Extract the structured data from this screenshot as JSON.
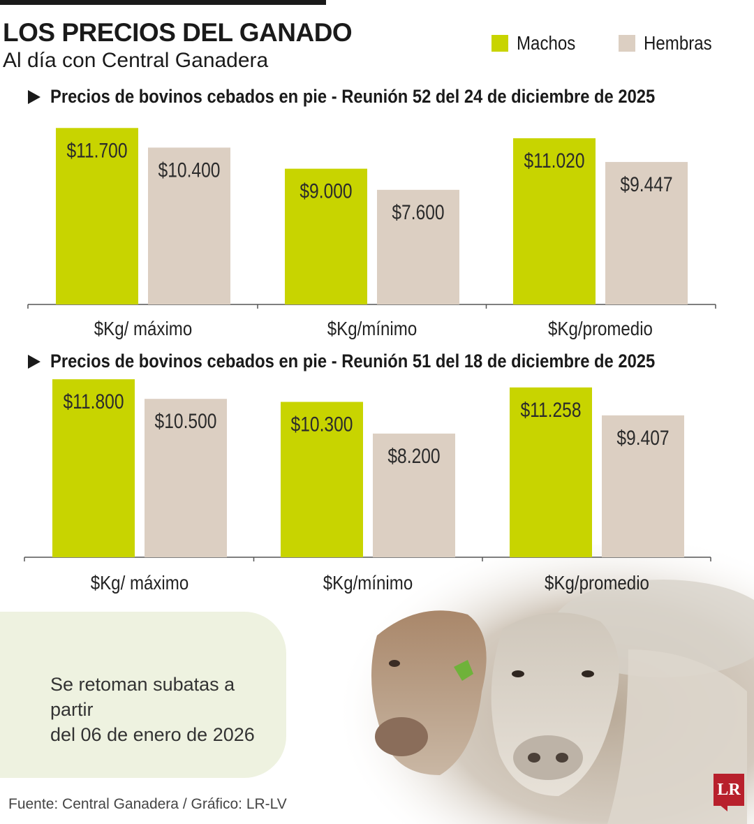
{
  "header": {
    "title": "LOS PRECIOS DEL GANADO",
    "subtitle": "Al día con Central Ganadera"
  },
  "legend": {
    "machos": "Machos",
    "hembras": "Hembras"
  },
  "colors": {
    "machos": "#c8d400",
    "hembras": "#dccfc2",
    "axis": "#555555"
  },
  "chart_data": [
    {
      "type": "bar",
      "title": "Precios de bovinos cebados en pie - Reunión 52 del 24 de diciembre de 2025",
      "categories": [
        "$Kg/ máximo",
        "$Kg/mínimo",
        "$Kg/promedio"
      ],
      "series": [
        {
          "name": "Machos",
          "values": [
            11700,
            9000,
            11020
          ],
          "labels": [
            "$11.700",
            "$9.000",
            "$11.020"
          ]
        },
        {
          "name": "Hembras",
          "values": [
            10400,
            7600,
            9447
          ],
          "labels": [
            "$10.400",
            "$7.600",
            "$9.447"
          ]
        }
      ],
      "ylim": [
        0,
        12500
      ],
      "grid": false
    },
    {
      "type": "bar",
      "title": "Precios de bovinos cebados en pie - Reunión 51 del 18 de diciembre de 2025",
      "categories": [
        "$Kg/ máximo",
        "$Kg/mínimo",
        "$Kg/promedio"
      ],
      "series": [
        {
          "name": "Machos",
          "values": [
            11800,
            10300,
            11258
          ],
          "labels": [
            "$11.800",
            "$10.300",
            "$11.258"
          ]
        },
        {
          "name": "Hembras",
          "values": [
            10500,
            8200,
            9407
          ],
          "labels": [
            "$10.500",
            "$8.200",
            "$9.407"
          ]
        }
      ],
      "ylim": [
        0,
        12500
      ],
      "grid": false
    }
  ],
  "notice": {
    "line1": "Se retoman subatas a partir",
    "line2": "del 06 de enero de 2026"
  },
  "footer": {
    "source": "Fuente: Central Ganadera / Gráfico: LR-LV",
    "logo": "LR"
  }
}
